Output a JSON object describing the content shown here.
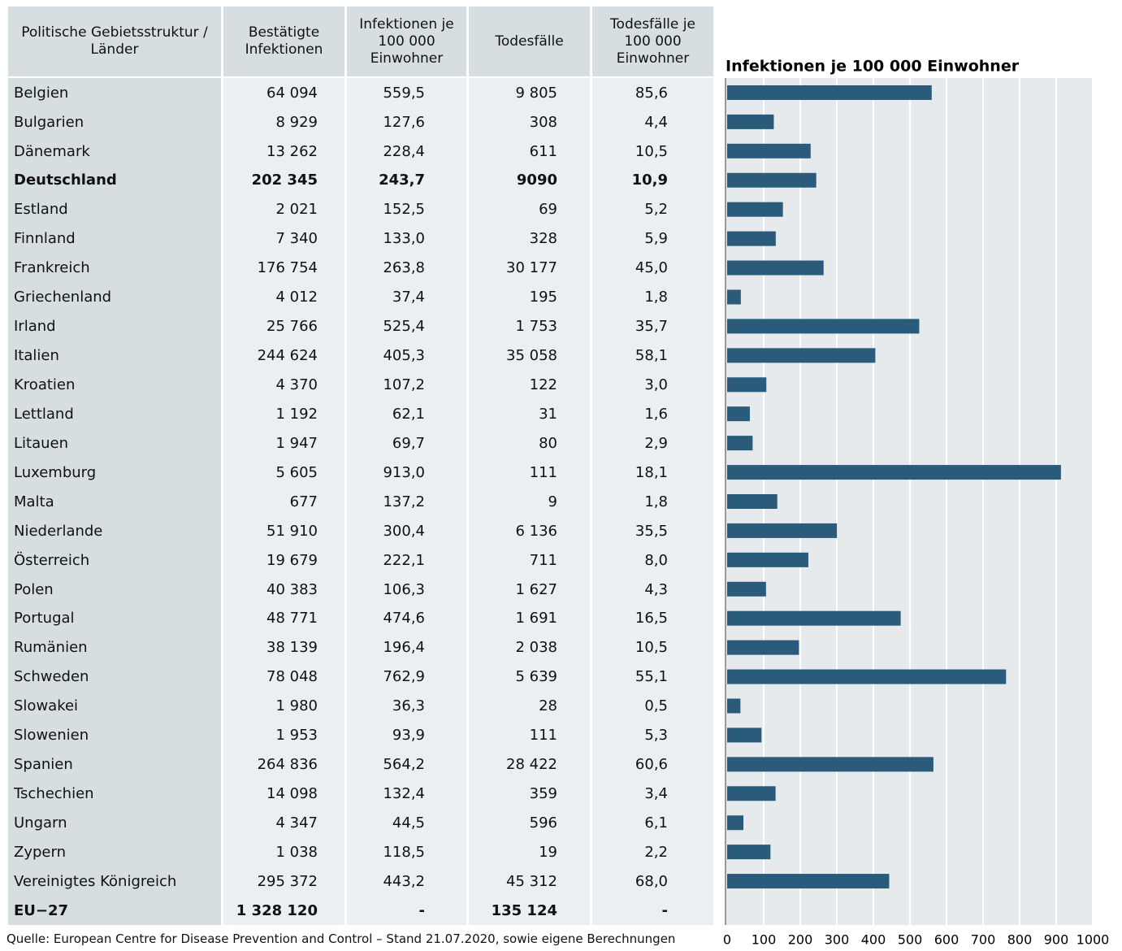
{
  "table": {
    "headers": [
      "Politische Gebietsstruktur / Länder",
      "Bestätigte Infektionen",
      "Infektionen je 100 000 Einwohner",
      "Todesfälle",
      "Todesfälle je 100 000 Einwohner"
    ],
    "bold_rows": [
      3,
      28
    ],
    "rows": [
      [
        "Belgien",
        "64 094",
        "559,5",
        "9 805",
        "85,6"
      ],
      [
        "Bulgarien",
        "8 929",
        "127,6",
        "308",
        "4,4"
      ],
      [
        "Dänemark",
        "13 262",
        "228,4",
        "611",
        "10,5"
      ],
      [
        "Deutschland",
        "202 345",
        "243,7",
        "9090",
        "10,9"
      ],
      [
        "Estland",
        "2 021",
        "152,5",
        "69",
        "5,2"
      ],
      [
        "Finnland",
        "7 340",
        "133,0",
        "328",
        "5,9"
      ],
      [
        "Frankreich",
        "176 754",
        "263,8",
        "30 177",
        "45,0"
      ],
      [
        "Griechenland",
        "4 012",
        "37,4",
        "195",
        "1,8"
      ],
      [
        "Irland",
        "25 766",
        "525,4",
        "1 753",
        "35,7"
      ],
      [
        "Italien",
        "244 624",
        "405,3",
        "35 058",
        "58,1"
      ],
      [
        "Kroatien",
        "4 370",
        "107,2",
        "122",
        "3,0"
      ],
      [
        "Lettland",
        "1 192",
        "62,1",
        "31",
        "1,6"
      ],
      [
        "Litauen",
        "1 947",
        "69,7",
        "80",
        "2,9"
      ],
      [
        "Luxemburg",
        "5 605",
        "913,0",
        "111",
        "18,1"
      ],
      [
        "Malta",
        "677",
        "137,2",
        "9",
        "1,8"
      ],
      [
        "Niederlande",
        "51 910",
        "300,4",
        "6 136",
        "35,5"
      ],
      [
        "Österreich",
        "19 679",
        "222,1",
        "711",
        "8,0"
      ],
      [
        "Polen",
        "40 383",
        "106,3",
        "1 627",
        "4,3"
      ],
      [
        "Portugal",
        "48 771",
        "474,6",
        "1 691",
        "16,5"
      ],
      [
        "Rumänien",
        "38 139",
        "196,4",
        "2 038",
        "10,5"
      ],
      [
        "Schweden",
        "78 048",
        "762,9",
        "5 639",
        "55,1"
      ],
      [
        "Slowakei",
        "1 980",
        "36,3",
        "28",
        "0,5"
      ],
      [
        "Slowenien",
        "1 953",
        "93,9",
        "111",
        "5,3"
      ],
      [
        "Spanien",
        "264 836",
        "564,2",
        "28 422",
        "60,6"
      ],
      [
        "Tschechien",
        "14 098",
        "132,4",
        "359",
        "3,4"
      ],
      [
        "Ungarn",
        "4 347",
        "44,5",
        "596",
        "6,1"
      ],
      [
        "Zypern",
        "1 038",
        "118,5",
        "19",
        "2,2"
      ],
      [
        "Vereinigtes Königreich",
        "295 372",
        "443,2",
        "45 312",
        "68,0"
      ],
      [
        "EU−27",
        "1 328 120",
        "-",
        "135 124",
        "-"
      ]
    ]
  },
  "chart_data": {
    "type": "bar",
    "orientation": "horizontal",
    "title": "Infektionen je 100 000 Einwohner",
    "values": [
      559.5,
      127.6,
      228.4,
      243.7,
      152.5,
      133.0,
      263.8,
      37.4,
      525.4,
      405.3,
      107.2,
      62.1,
      69.7,
      913.0,
      137.2,
      300.4,
      222.1,
      106.3,
      474.6,
      196.4,
      762.9,
      36.3,
      93.9,
      564.2,
      132.4,
      44.5,
      118.5,
      443.2
    ],
    "color": "#2a5b7a",
    "xlim": [
      0,
      1000
    ],
    "xticks": [
      0,
      100,
      200,
      300,
      400,
      500,
      600,
      700,
      800,
      900,
      1000
    ],
    "grid": true
  },
  "source": "Quelle: European Centre for Disease Prevention and Control – Stand 21.07.2020, sowie eigene Berechnungen"
}
